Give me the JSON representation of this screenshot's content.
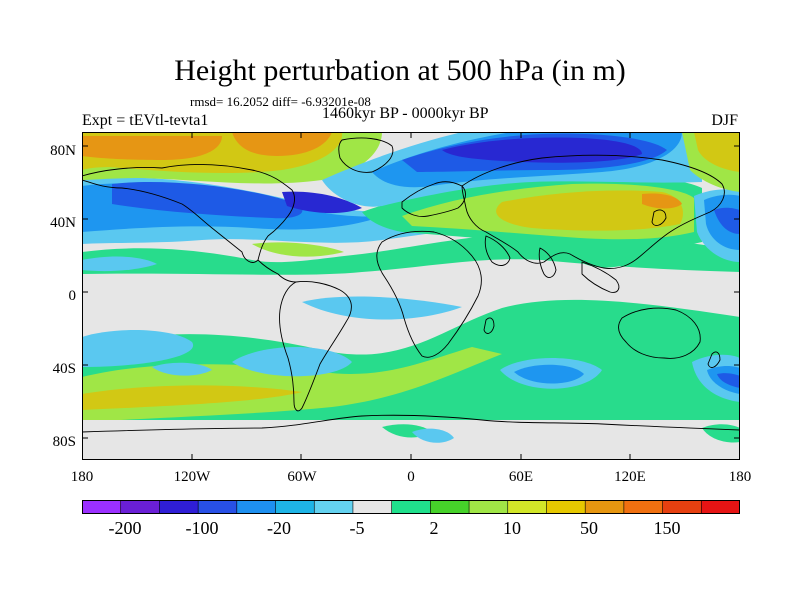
{
  "header": {
    "title": "Height perturbation at 500 hPa (in m)",
    "stats": "rmsd= 16.2052 diff= -6.93201e-08",
    "period": "1460kyr BP - 0000kyr BP",
    "experiment": "Expt = tEVtl-tevta1",
    "season": "DJF"
  },
  "axes": {
    "lat_ticks": [
      "80N",
      "40N",
      "0",
      "40S",
      "80S"
    ],
    "lon_ticks": [
      "180",
      "120W",
      "60W",
      "0",
      "60E",
      "120E",
      "180"
    ]
  },
  "colorbar": {
    "labels": [
      "-200",
      "-100",
      "-20",
      "-5",
      "2",
      "10",
      "50",
      "150"
    ],
    "colors": [
      "#9b30ff",
      "#6a1fd6",
      "#2f1ed6",
      "#2850e6",
      "#1e90f0",
      "#1eb4e6",
      "#64d2f0",
      "#e6e6e6",
      "#20e08c",
      "#46d22a",
      "#a0e646",
      "#d2e628",
      "#e6c800",
      "#e69610",
      "#f07010",
      "#e64010",
      "#e61414"
    ]
  },
  "field_colors": {
    "deep_negative": "#2828d2",
    "strong_negative": "#1e5ae6",
    "negative": "#1e96f0",
    "weak_negative": "#5ac8f0",
    "neutral": "#e6e6e6",
    "weak_positive": "#28dc8c",
    "positive": "#a0e646",
    "strong_positive": "#d2c814",
    "very_positive": "#e69614"
  }
}
